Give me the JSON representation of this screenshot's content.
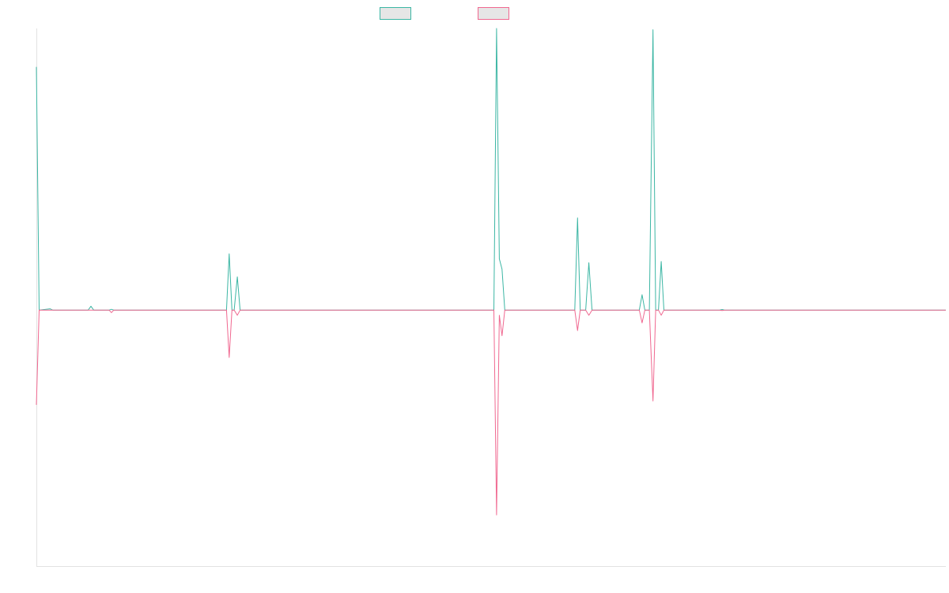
{
  "chart_data": {
    "type": "line",
    "title": "",
    "xlabel": "",
    "ylabel": "",
    "xlim": [
      0,
      200
    ],
    "ylim": [
      -100,
      110
    ],
    "grid": false,
    "legend_position": "top-center",
    "series": [
      {
        "color": "#3cb6a4",
        "points": [
          [
            0,
            95
          ],
          [
            0.6,
            0
          ],
          [
            3,
            0.5
          ],
          [
            3.6,
            0
          ],
          [
            11.4,
            0
          ],
          [
            12,
            1.5
          ],
          [
            12.6,
            0
          ],
          [
            16,
            0
          ],
          [
            16.5,
            0.3
          ],
          [
            17,
            0
          ],
          [
            41.8,
            0
          ],
          [
            42.4,
            22
          ],
          [
            43,
            0
          ],
          [
            43.5,
            0
          ],
          [
            44.2,
            13
          ],
          [
            44.8,
            0
          ],
          [
            100.6,
            0
          ],
          [
            101.2,
            110
          ],
          [
            101.8,
            20
          ],
          [
            102.4,
            16
          ],
          [
            103,
            0
          ],
          [
            118.4,
            0
          ],
          [
            119,
            36
          ],
          [
            119.6,
            0
          ],
          [
            120.8,
            0
          ],
          [
            121.5,
            18.5
          ],
          [
            122.2,
            0
          ],
          [
            132.6,
            0
          ],
          [
            133.2,
            6
          ],
          [
            133.8,
            0
          ],
          [
            134.8,
            0
          ],
          [
            135.6,
            109.5
          ],
          [
            136.2,
            0
          ],
          [
            136.8,
            0
          ],
          [
            137.4,
            19
          ],
          [
            138,
            0
          ],
          [
            150.2,
            0
          ],
          [
            150.8,
            0.2
          ],
          [
            151.4,
            0
          ],
          [
            200,
            0
          ]
        ]
      },
      {
        "color": "#f06890",
        "points": [
          [
            0,
            -37
          ],
          [
            0.6,
            0
          ],
          [
            16,
            0
          ],
          [
            16.5,
            -1
          ],
          [
            17,
            0
          ],
          [
            41.8,
            0
          ],
          [
            42.4,
            -18.5
          ],
          [
            43,
            0
          ],
          [
            43.5,
            0
          ],
          [
            44.2,
            -2
          ],
          [
            44.8,
            0
          ],
          [
            100.6,
            0
          ],
          [
            101.2,
            -80
          ],
          [
            101.8,
            -2
          ],
          [
            102.4,
            -10
          ],
          [
            103,
            0
          ],
          [
            118.4,
            0
          ],
          [
            119,
            -8
          ],
          [
            119.6,
            0
          ],
          [
            120.8,
            0
          ],
          [
            121.5,
            -2
          ],
          [
            122.2,
            0
          ],
          [
            132.6,
            0
          ],
          [
            133.2,
            -5
          ],
          [
            133.8,
            0
          ],
          [
            134.8,
            0
          ],
          [
            135.6,
            -35.5
          ],
          [
            136.2,
            0
          ],
          [
            136.8,
            0
          ],
          [
            137.4,
            -2
          ],
          [
            138,
            0
          ],
          [
            150.2,
            0
          ],
          [
            150.8,
            -0.2
          ],
          [
            151.4,
            0
          ],
          [
            200,
            0
          ]
        ]
      }
    ]
  }
}
